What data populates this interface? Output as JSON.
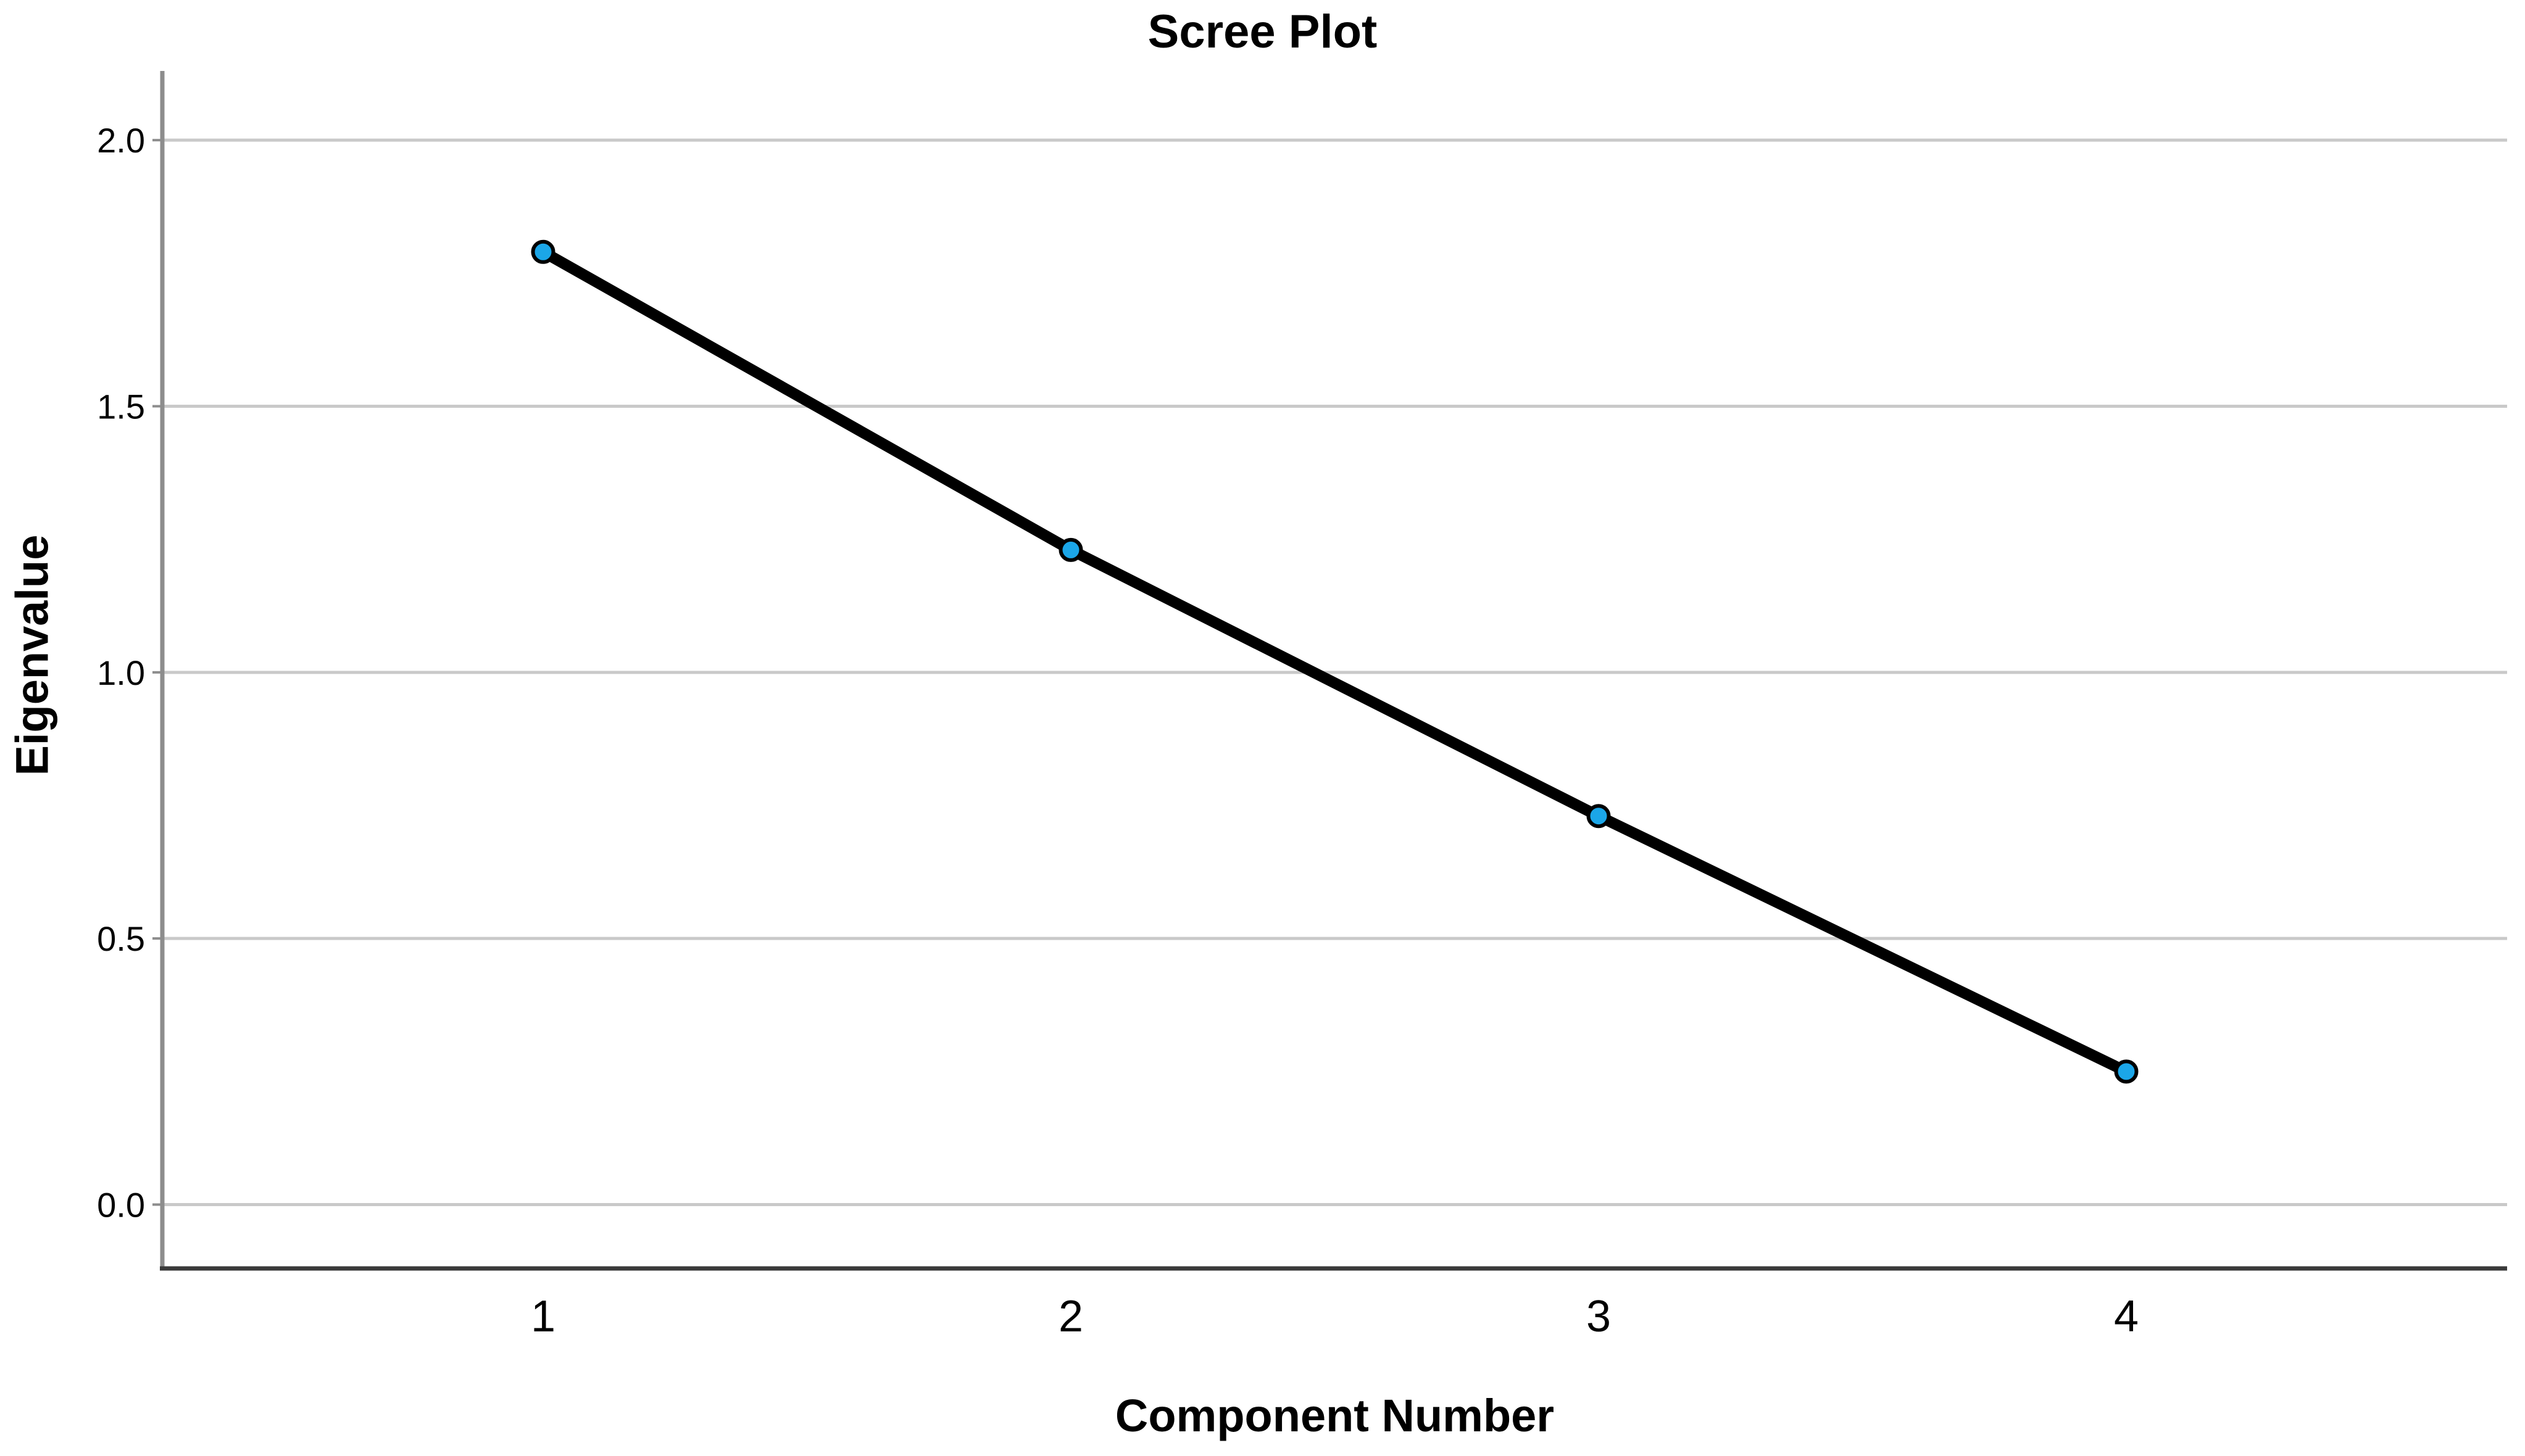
{
  "chart_data": {
    "type": "line",
    "title": "Scree Plot",
    "xlabel": "Component Number",
    "ylabel": "Eigenvalue",
    "series": [
      {
        "name": "Eigenvalue",
        "x": [
          1,
          2,
          3,
          4
        ],
        "values": [
          1.79,
          1.23,
          0.73,
          0.25
        ]
      }
    ],
    "x_tick_labels": [
      "1",
      "2",
      "3",
      "4"
    ],
    "y_tick_labels": [
      "0.0",
      "0.5",
      "1.0",
      "1.5",
      "2.0"
    ],
    "y_tick_values": [
      0.0,
      0.5,
      1.0,
      1.5,
      2.0
    ],
    "ylim": [
      -0.12,
      2.13
    ],
    "grid": "horizontal-only",
    "legend_position": "none",
    "colors": {
      "background": "#ffffff",
      "line": "#000000",
      "marker_fill": "#1BA6E8",
      "marker_stroke": "#000000",
      "gridline": "#c9c9c9",
      "y_axis_line": "#8d8d8d",
      "x_axis_line": "#3a3a3a",
      "text": "#000000"
    }
  }
}
